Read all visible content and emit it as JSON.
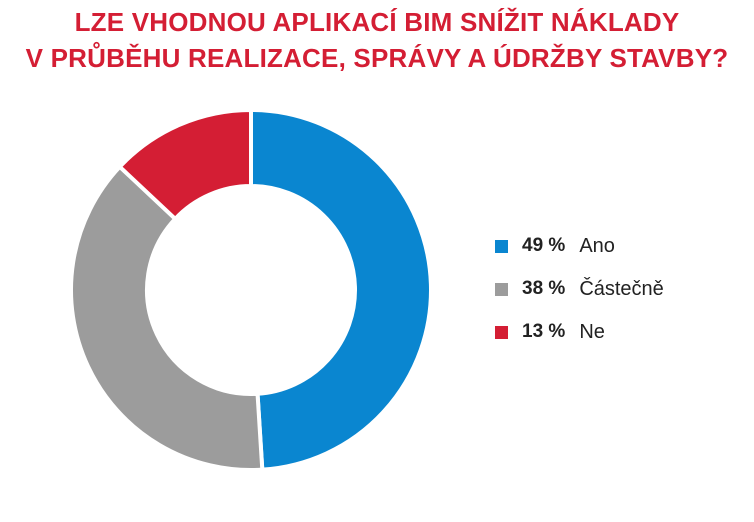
{
  "chart_data": {
    "type": "pie",
    "title": "LZE VHODNOU APLIKACÍ BIM SNÍŽIT NÁKLADY V PRŮBĚHU REALIZACE, SPRÁVY A ÚDRŽBY STAVBY?",
    "title_lines": [
      "LZE VHODNOU APLIKACÍ BIM SNÍŽIT NÁKLADY",
      "V PRŮBĚHU REALIZACE, SPRÁVY A ÚDRŽBY STAVBY?"
    ],
    "donut": true,
    "legend_position": "right",
    "slices": [
      {
        "label": "Ano",
        "value": 49,
        "value_label": "49 %",
        "color": "#0a86d0"
      },
      {
        "label": "Částečně",
        "value": 38,
        "value_label": "38 %",
        "color": "#9c9c9c"
      },
      {
        "label": "Ne",
        "value": 13,
        "value_label": "13 %",
        "color": "#d41e34"
      }
    ]
  },
  "colors": {
    "title": "#d41e34",
    "text": "#222222",
    "background": "#ffffff"
  }
}
